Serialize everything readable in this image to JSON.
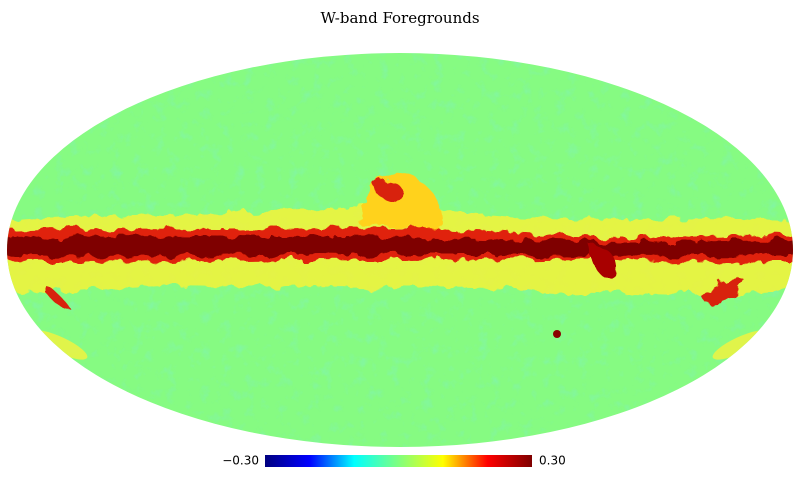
{
  "title": "W-band Foregrounds",
  "colorbar": {
    "min": {
      "value": -0.3,
      "label": "−0.30"
    },
    "max": {
      "value": 0.3,
      "label": "0.30"
    },
    "colormap": [
      "#00007f",
      "#0000ff",
      "#00ffff",
      "#7fff7f",
      "#ffff00",
      "#ff0000",
      "#7f0000"
    ]
  }
}
